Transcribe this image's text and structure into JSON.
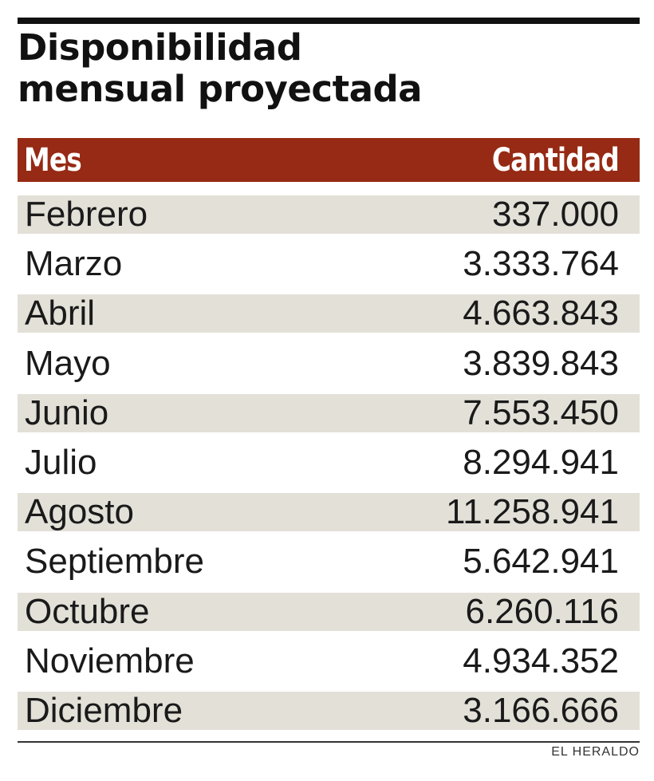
{
  "header": {
    "title_line1": "Disponibilidad",
    "title_line2": "mensual proyectada"
  },
  "colors": {
    "header_bg": "#962a14",
    "stripe": "#e3e0d8",
    "text": "#1a1a1a"
  },
  "chart_data": {
    "type": "table",
    "title": "Disponibilidad mensual proyectada",
    "columns": [
      "Mes",
      "Cantidad"
    ],
    "rows": [
      [
        "Febrero",
        "337.000"
      ],
      [
        "Marzo",
        "3.333.764"
      ],
      [
        "Abril",
        "4.663.843"
      ],
      [
        "Mayo",
        "3.839.843"
      ],
      [
        "Junio",
        "7.553.450"
      ],
      [
        "Julio",
        "8.294.941"
      ],
      [
        "Agosto",
        "11.258.941"
      ],
      [
        "Septiembre",
        "5.642.941"
      ],
      [
        "Octubre",
        "6.260.116"
      ],
      [
        "Noviembre",
        "4.934.352"
      ],
      [
        "Diciembre",
        "3.166.666"
      ]
    ]
  },
  "footer": {
    "credit": "EL HERALDO"
  }
}
